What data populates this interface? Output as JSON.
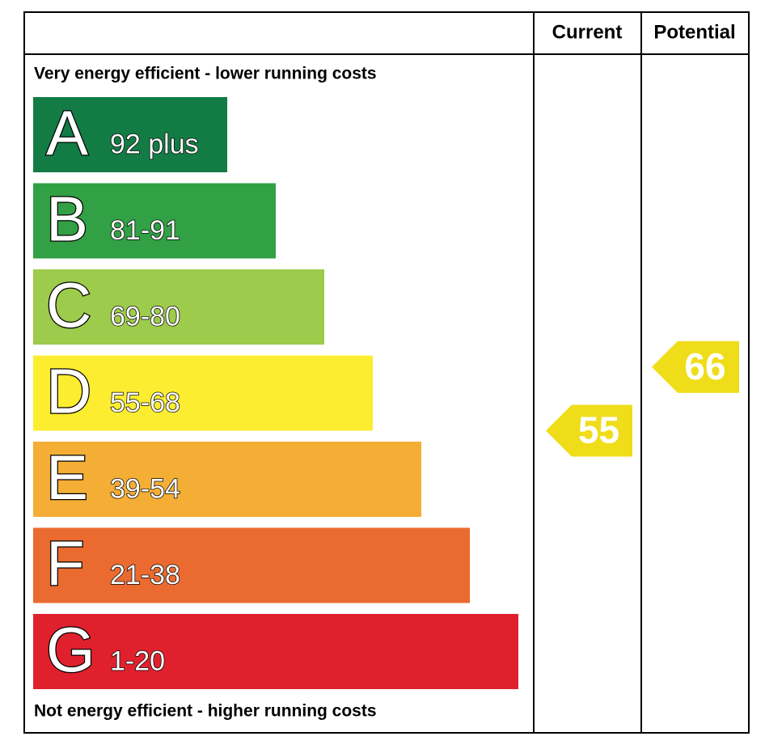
{
  "header": {
    "current": "Current",
    "potential": "Potential"
  },
  "top_note": "Very energy efficient - lower running costs",
  "bottom_note": "Not energy efficient - higher running costs",
  "bands": [
    {
      "letter": "A",
      "range": "92 plus",
      "color": "#137c45"
    },
    {
      "letter": "B",
      "range": "81-91",
      "color": "#32a045"
    },
    {
      "letter": "C",
      "range": "69-80",
      "color": "#9dcb4c"
    },
    {
      "letter": "D",
      "range": "55-68",
      "color": "#fced30"
    },
    {
      "letter": "E",
      "range": "39-54",
      "color": "#f4ae35"
    },
    {
      "letter": "F",
      "range": "21-38",
      "color": "#ea6a30"
    },
    {
      "letter": "G",
      "range": "1-20",
      "color": "#e0212d"
    }
  ],
  "current": 55,
  "potential": 66,
  "arrow_color": "#efdd1a"
}
